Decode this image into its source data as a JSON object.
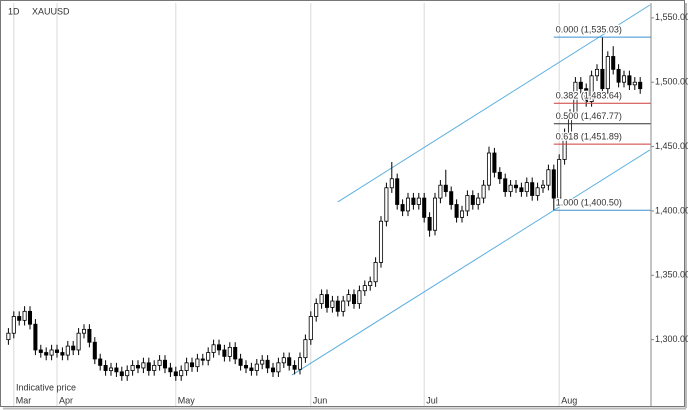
{
  "chart_data": {
    "type": "candlestick",
    "interval": "1D",
    "title": "XAUUSD",
    "note": "Indicative price",
    "xlim": [
      -1,
      119
    ],
    "xticks": [
      {
        "value": 1,
        "label": "Mar"
      },
      {
        "value": 9,
        "label": "Apr"
      },
      {
        "value": 31,
        "label": "May"
      },
      {
        "value": 56,
        "label": "Jun"
      },
      {
        "value": 77,
        "label": "Jul"
      },
      {
        "value": 102,
        "label": "Aug"
      }
    ],
    "ylim": [
      1257,
      1560
    ],
    "yticks": [
      {
        "value": 1300,
        "label": "1,300.00"
      },
      {
        "value": 1350,
        "label": "1,350.00"
      },
      {
        "value": 1400,
        "label": "1,400.00"
      },
      {
        "value": 1450,
        "label": "1,450.00"
      },
      {
        "value": 1500,
        "label": "1,500.00"
      },
      {
        "value": 1550,
        "label": "1,550.00"
      }
    ],
    "grid": true,
    "up_color": "#ffffff",
    "down_color": "#000000",
    "open": [
      1300,
      1305,
      1318,
      1315,
      1322,
      1312,
      1292,
      1290,
      1288,
      1292,
      1290,
      1288,
      1295,
      1292,
      1305,
      1308,
      1298,
      1285,
      1280,
      1276,
      1278,
      1275,
      1272,
      1276,
      1280,
      1278,
      1282,
      1276,
      1280,
      1284,
      1278,
      1275,
      1272,
      1276,
      1282,
      1279,
      1285,
      1284,
      1290,
      1296,
      1292,
      1287,
      1294,
      1285,
      1280,
      1278,
      1276,
      1281,
      1284,
      1278,
      1275,
      1282,
      1286,
      1280,
      1277,
      1286,
      1300,
      1318,
      1328,
      1335,
      1325,
      1330,
      1322,
      1330,
      1335,
      1328,
      1338,
      1342,
      1345,
      1360,
      1392,
      1418,
      1425,
      1405,
      1400,
      1410,
      1405,
      1410,
      1395,
      1385,
      1410,
      1420,
      1415,
      1405,
      1395,
      1400,
      1412,
      1405,
      1410,
      1420,
      1445,
      1430,
      1425,
      1415,
      1420,
      1418,
      1415,
      1422,
      1412,
      1418,
      1420,
      1432,
      1410,
      1440,
      1460,
      1475,
      1500,
      1495,
      1485,
      1505,
      1510,
      1495,
      1520,
      1510,
      1500,
      1505,
      1498,
      1500
    ],
    "high": [
      1309,
      1322,
      1322,
      1326,
      1326,
      1316,
      1296,
      1294,
      1296,
      1296,
      1294,
      1299,
      1299,
      1309,
      1312,
      1312,
      1302,
      1289,
      1284,
      1282,
      1282,
      1279,
      1280,
      1284,
      1284,
      1286,
      1286,
      1284,
      1288,
      1288,
      1282,
      1279,
      1280,
      1286,
      1286,
      1289,
      1289,
      1294,
      1300,
      1300,
      1296,
      1298,
      1298,
      1289,
      1284,
      1282,
      1285,
      1288,
      1288,
      1282,
      1286,
      1290,
      1290,
      1284,
      1290,
      1304,
      1322,
      1332,
      1339,
      1339,
      1334,
      1334,
      1334,
      1339,
      1339,
      1342,
      1346,
      1349,
      1364,
      1396,
      1422,
      1438,
      1429,
      1409,
      1414,
      1414,
      1414,
      1414,
      1399,
      1414,
      1424,
      1432,
      1419,
      1409,
      1404,
      1416,
      1416,
      1414,
      1424,
      1450,
      1449,
      1434,
      1429,
      1424,
      1424,
      1422,
      1426,
      1426,
      1422,
      1424,
      1436,
      1436,
      1444,
      1464,
      1479,
      1504,
      1504,
      1499,
      1509,
      1514,
      1535,
      1524,
      1528,
      1514,
      1509,
      1509,
      1504,
      1504
    ],
    "low": [
      1296,
      1301,
      1311,
      1311,
      1308,
      1288,
      1286,
      1284,
      1284,
      1286,
      1284,
      1284,
      1288,
      1288,
      1301,
      1294,
      1281,
      1276,
      1272,
      1272,
      1271,
      1268,
      1268,
      1272,
      1274,
      1274,
      1272,
      1272,
      1276,
      1274,
      1271,
      1268,
      1268,
      1272,
      1275,
      1275,
      1280,
      1280,
      1286,
      1288,
      1283,
      1283,
      1281,
      1276,
      1274,
      1272,
      1272,
      1277,
      1274,
      1271,
      1271,
      1278,
      1276,
      1273,
      1273,
      1282,
      1296,
      1314,
      1324,
      1321,
      1321,
      1318,
      1318,
      1326,
      1324,
      1324,
      1334,
      1338,
      1341,
      1356,
      1388,
      1414,
      1401,
      1396,
      1396,
      1401,
      1401,
      1391,
      1380,
      1381,
      1406,
      1411,
      1401,
      1391,
      1391,
      1396,
      1401,
      1401,
      1406,
      1416,
      1426,
      1421,
      1411,
      1411,
      1414,
      1411,
      1411,
      1408,
      1408,
      1414,
      1416,
      1400.5,
      1406,
      1436,
      1456,
      1471,
      1491,
      1481,
      1481,
      1501,
      1491,
      1491,
      1506,
      1496,
      1496,
      1494,
      1494,
      1491
    ],
    "close": [
      1305,
      1318,
      1315,
      1322,
      1312,
      1292,
      1290,
      1288,
      1292,
      1290,
      1288,
      1295,
      1292,
      1305,
      1308,
      1298,
      1285,
      1280,
      1276,
      1278,
      1275,
      1272,
      1276,
      1280,
      1278,
      1282,
      1276,
      1280,
      1284,
      1278,
      1275,
      1272,
      1276,
      1282,
      1279,
      1285,
      1284,
      1290,
      1296,
      1292,
      1287,
      1294,
      1285,
      1280,
      1278,
      1276,
      1281,
      1284,
      1278,
      1275,
      1282,
      1286,
      1280,
      1277,
      1286,
      1300,
      1318,
      1328,
      1335,
      1325,
      1330,
      1322,
      1330,
      1335,
      1328,
      1338,
      1342,
      1345,
      1360,
      1392,
      1418,
      1425,
      1405,
      1400,
      1410,
      1405,
      1410,
      1395,
      1385,
      1410,
      1420,
      1415,
      1405,
      1395,
      1400,
      1412,
      1405,
      1410,
      1420,
      1445,
      1430,
      1425,
      1415,
      1420,
      1418,
      1415,
      1422,
      1412,
      1418,
      1420,
      1432,
      1410,
      1440,
      1460,
      1475,
      1500,
      1495,
      1485,
      1505,
      1510,
      1495,
      1520,
      1510,
      1500,
      1505,
      1498,
      1500,
      1495
    ],
    "channel": {
      "color": "#5aaee0",
      "lines": [
        {
          "x": [
            61,
            118.8
          ],
          "y": [
            1407,
            1560
          ]
        },
        {
          "x": [
            52.5,
            118.8
          ],
          "y": [
            1272.5,
            1447.4
          ]
        }
      ]
    },
    "fibonacci": {
      "x": [
        101,
        119
      ],
      "levels": [
        {
          "label": "0.000 (1,535.03)",
          "value": 1535.03,
          "color": "#3b8fd0"
        },
        {
          "label": "0.382 (1,483.64)",
          "value": 1483.64,
          "color": "#d03a3a"
        },
        {
          "label": "0.500 (1,467.77)",
          "value": 1467.77,
          "color": "#333333"
        },
        {
          "label": "0.618 (1,451.89)",
          "value": 1451.89,
          "color": "#d03a3a"
        },
        {
          "label": "1.000 (1,400.50)",
          "value": 1400.5,
          "color": "#3b8fd0"
        }
      ]
    }
  }
}
